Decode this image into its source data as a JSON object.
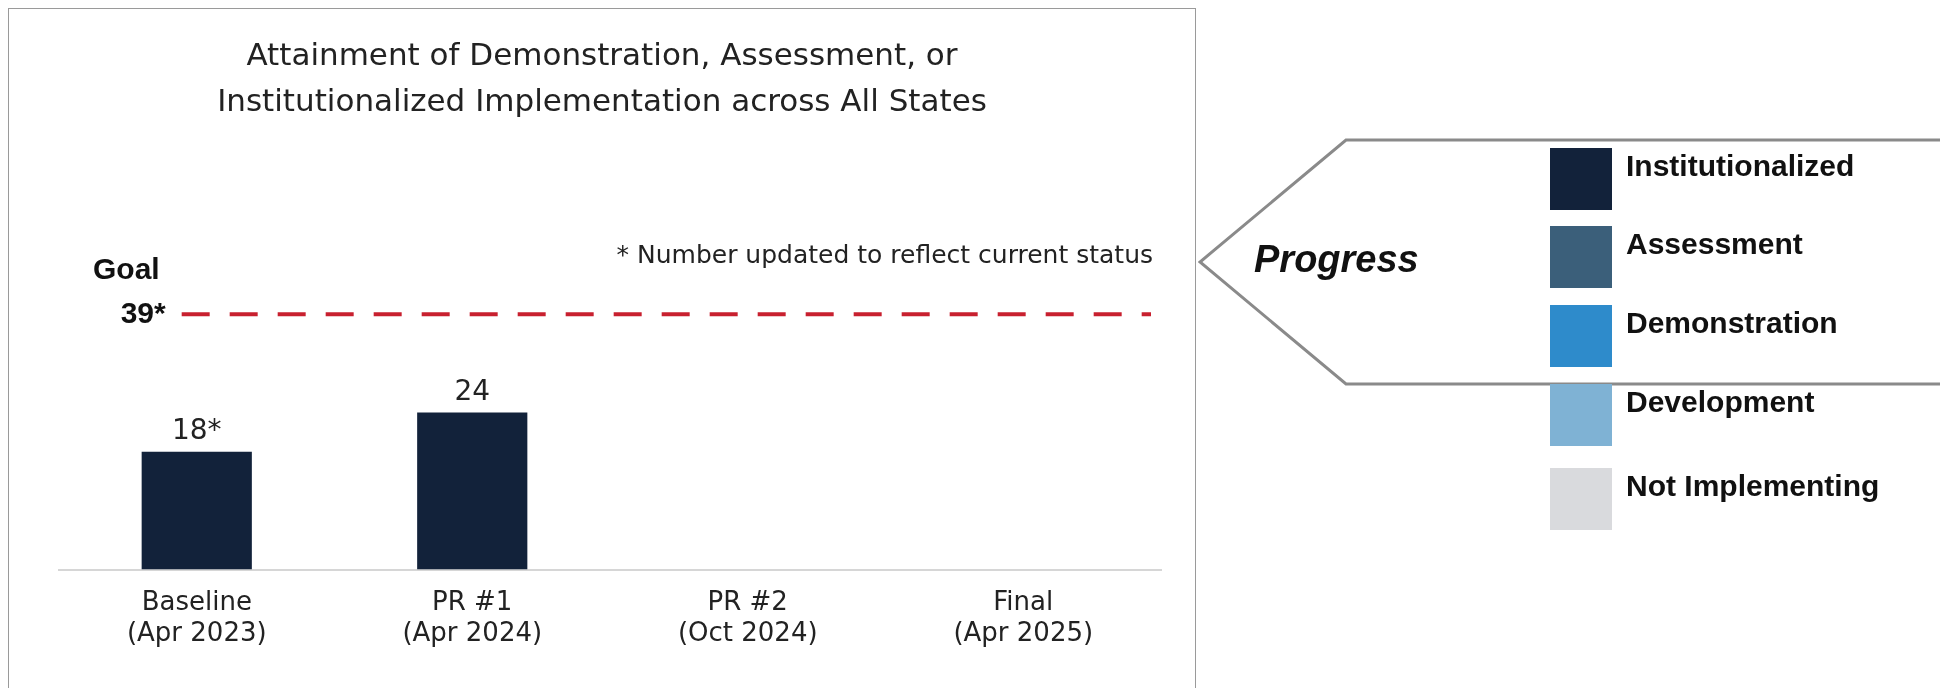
{
  "chart_data": {
    "type": "bar",
    "title": "Attainment of Demonstration, Assessment, or Institutionalized Implementation across All States",
    "categories": [
      "Baseline\n(Apr 2023)",
      "PR #1\n(Apr 2024)",
      "PR #2\n(Oct 2024)",
      "Final\n(Apr 2025)"
    ],
    "series": [
      {
        "name": "Institutionalized",
        "color": "#12223a",
        "values": [
          18,
          24,
          null,
          null
        ],
        "value_labels": [
          "18*",
          "24",
          null,
          null
        ]
      },
      {
        "name": "Assessment",
        "color": "#3b5f7a",
        "values": [
          null,
          null,
          null,
          null
        ]
      },
      {
        "name": "Demonstration",
        "color": "#2e8bcb",
        "values": [
          null,
          null,
          null,
          null
        ]
      },
      {
        "name": "Development",
        "color": "#7fb2d4",
        "values": [
          null,
          null,
          null,
          null
        ]
      },
      {
        "name": "Not Implementing",
        "color": "#d9dadd",
        "values": [
          null,
          null,
          null,
          null
        ]
      }
    ],
    "tick_labels": "x",
    "grid": false,
    "legend": "right",
    "legend_title": "Progress",
    "ref_lines": [
      {
        "axis": "y",
        "value": 39,
        "label": "Goal\n39*",
        "color": "#c8202f",
        "line_style": "dashed"
      }
    ],
    "annotations": [
      "* Number updated to reflect current status"
    ]
  }
}
